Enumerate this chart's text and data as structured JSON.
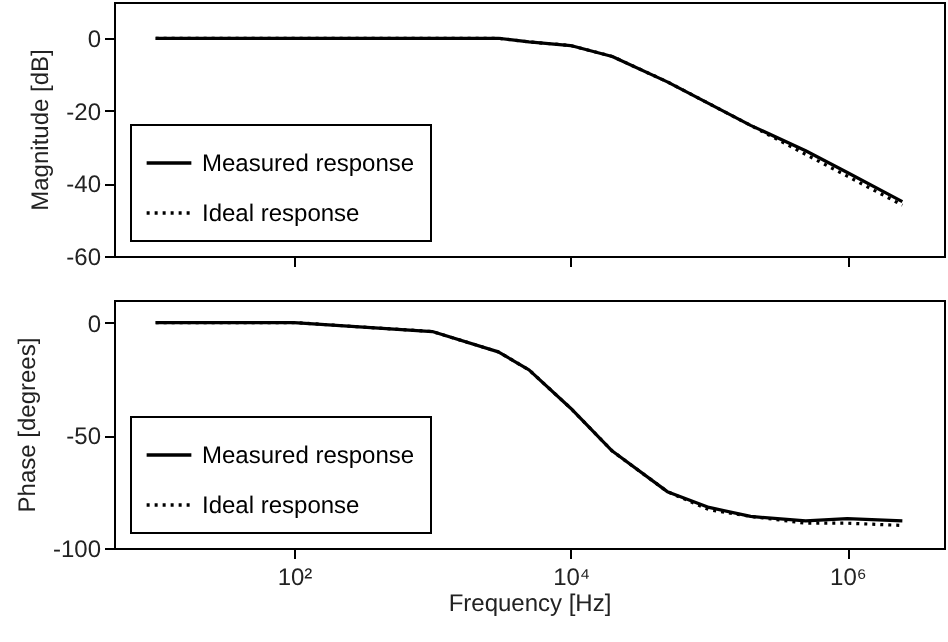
{
  "chart_data": [
    {
      "type": "line",
      "ylabel": "Magnitude [dB]",
      "x": [
        10,
        100,
        1000,
        3000,
        5000,
        10000,
        20000,
        50000,
        100000,
        200000,
        500000,
        1000000,
        2500000
      ],
      "series": [
        {
          "name": "Measured response",
          "color": "#000000",
          "line_style": "solid",
          "values": [
            0,
            0,
            0,
            0,
            -1,
            -2,
            -5,
            -12,
            -18,
            -24,
            -31,
            -37,
            -45
          ]
        },
        {
          "name": "Ideal response",
          "color": "#000000",
          "line_style": "dotted",
          "values": [
            0,
            0,
            0,
            0,
            -1,
            -2,
            -5,
            -12,
            -18,
            -24,
            -32,
            -38,
            -46
          ]
        }
      ],
      "log": "x",
      "xlim": [
        5,
        5000000
      ],
      "xticks": [
        {
          "value": 100,
          "label": null
        },
        {
          "value": 10000,
          "label": null
        },
        {
          "value": 1000000,
          "label": null
        }
      ],
      "ylim": [
        -60,
        10
      ],
      "yticks": [
        -60,
        -40,
        -20,
        0
      ],
      "legend": "bottom left",
      "tick_labels": "y"
    },
    {
      "type": "line",
      "xlabel": "Frequency [Hz]",
      "ylabel": "Phase [degrees]",
      "x": [
        10,
        100,
        1000,
        3000,
        5000,
        10000,
        20000,
        50000,
        100000,
        200000,
        500000,
        1000000,
        2500000
      ],
      "series": [
        {
          "name": "Measured response",
          "color": "#000000",
          "line_style": "solid",
          "values": [
            0,
            0,
            -4,
            -13,
            -21,
            -38,
            -57,
            -75,
            -82,
            -86,
            -88,
            -87,
            -88
          ]
        },
        {
          "name": "Ideal response",
          "color": "#000000",
          "line_style": "dotted",
          "values": [
            0,
            0,
            -4,
            -13,
            -21,
            -38,
            -57,
            -75,
            -83,
            -86,
            -89,
            -89,
            -90
          ]
        }
      ],
      "log": "x",
      "xlim": [
        5,
        5000000
      ],
      "xticks": [
        {
          "value": 100,
          "label": "10²"
        },
        {
          "value": 10000,
          "label": "10⁴"
        },
        {
          "value": 1000000,
          "label": "10⁶"
        }
      ],
      "ylim": [
        -100,
        10
      ],
      "yticks": [
        -100,
        -50,
        0
      ],
      "legend": "bottom left"
    }
  ]
}
